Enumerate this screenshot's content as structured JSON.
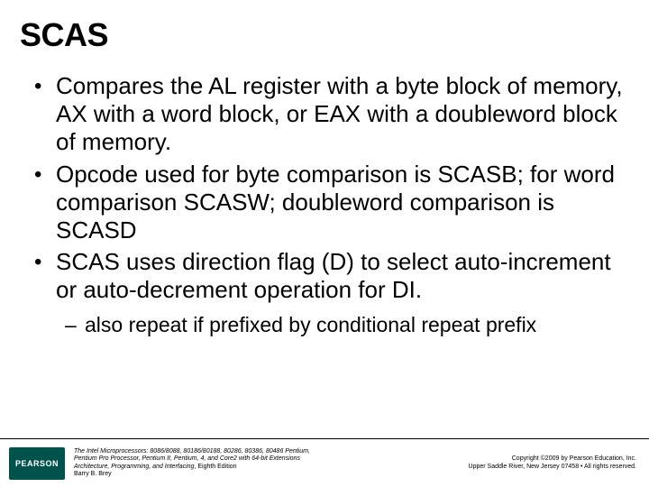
{
  "title": "SCAS",
  "bullets": [
    {
      "level": 1,
      "text": "Compares the AL register with a byte block of memory, AX with a word block, or EAX with a doubleword block of memory."
    },
    {
      "level": 1,
      "text": "Opcode used for byte comparison is SCASB; for word comparison SCASW; doubleword comparison is SCASD"
    },
    {
      "level": 1,
      "text": "SCAS uses direction flag (D) to select auto-increment or auto-decrement operation for DI."
    },
    {
      "level": 2,
      "text": "also repeat if prefixed by conditional repeat prefix"
    }
  ],
  "footer": {
    "logo_text": "PEARSON",
    "book_line1": "The Intel Microprocessors: 8086/8088, 80186/80188, 80286, 80386, 80486 Pentium,",
    "book_line2": "Pentium Pro Processor, Pentium II, Pentium, 4, and Core2 with 64-bit Extensions",
    "book_line3a": "Architecture, Programming, and Interfacing",
    "book_line3b": ", Eighth Edition",
    "book_line4": "Barry B. Brey",
    "copyright_line1": "Copyright ©2009 by Pearson Education, Inc.",
    "copyright_line2": "Upper Saddle River, New Jersey 07458 • All rights reserved."
  },
  "colors": {
    "background": "#ffffff",
    "text": "#000000",
    "logo_bg": "#00524c",
    "logo_fg": "#ffffff",
    "divider": "#000000"
  },
  "typography": {
    "title_fontsize": 36,
    "bullet_l1_fontsize": 26,
    "bullet_l2_fontsize": 23,
    "footer_fontsize": 7
  }
}
